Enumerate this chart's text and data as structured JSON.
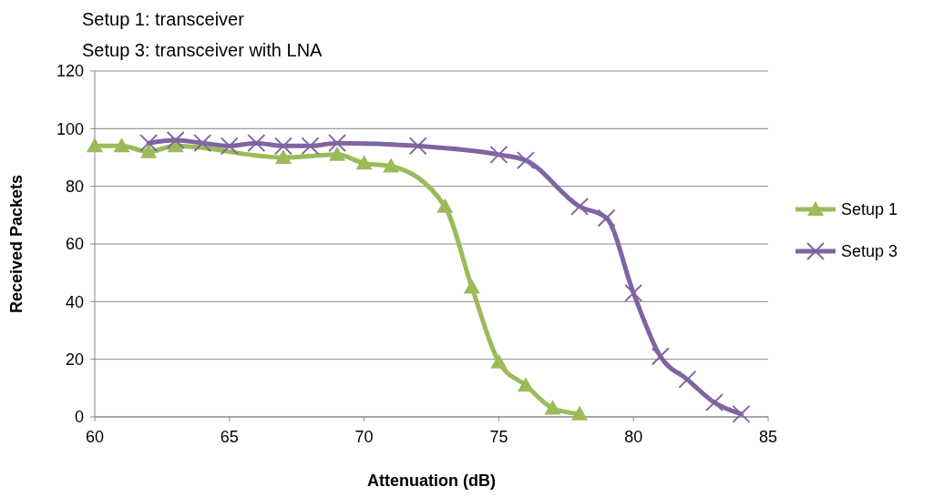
{
  "chart_data": {
    "type": "line",
    "title": "Setup 1: transceiver",
    "subtitle": "Setup 3: transceiver with LNA",
    "xlabel": "Attenuation (dB)",
    "ylabel": "Received Packets",
    "xlim": [
      60,
      85
    ],
    "xticks": [
      60,
      65,
      70,
      75,
      80,
      85
    ],
    "ylim": [
      0,
      120
    ],
    "yticks": [
      0,
      20,
      40,
      60,
      80,
      100,
      120
    ],
    "grid": "y",
    "legend": "right",
    "line_style": "solid",
    "series": [
      {
        "name": "Setup 1",
        "color": "#9bbb59",
        "marker": "triangle",
        "x": [
          60,
          61,
          62,
          63,
          67,
          69,
          70,
          71,
          73,
          74,
          75,
          76,
          77,
          78
        ],
        "values": [
          94,
          94,
          92,
          94,
          90,
          91,
          88,
          87,
          73,
          45,
          19,
          11,
          3,
          1
        ]
      },
      {
        "name": "Setup 3",
        "color": "#8064a2",
        "marker": "cross",
        "x": [
          62,
          63,
          64,
          65,
          66,
          67,
          68,
          69,
          72,
          75,
          76,
          78,
          79,
          80,
          81,
          82,
          83,
          84
        ],
        "values": [
          95,
          96,
          95,
          94,
          95,
          94,
          94,
          95,
          94,
          91,
          89,
          73,
          69,
          43,
          21,
          13,
          5,
          1
        ]
      }
    ]
  }
}
